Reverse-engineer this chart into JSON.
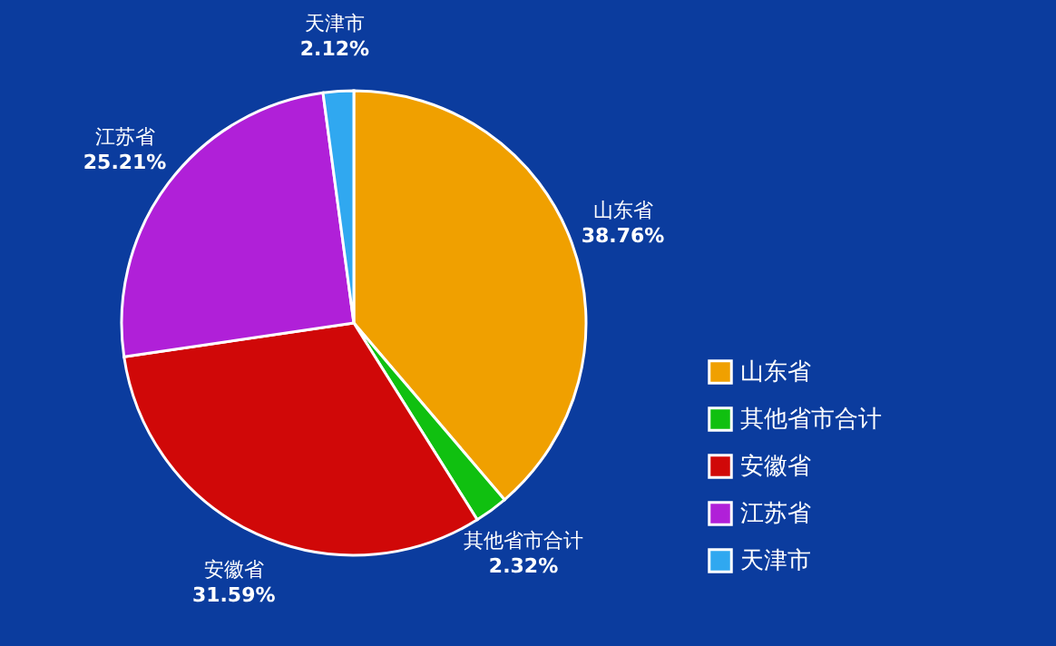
{
  "chart_data": {
    "type": "pie",
    "categories": [
      "山东省",
      "其他省市合计",
      "安徽省",
      "江苏省",
      "天津市"
    ],
    "values": [
      38.76,
      2.32,
      31.59,
      25.21,
      2.12
    ],
    "value_labels": [
      "38.76%",
      "2.32%",
      "31.59%",
      "25.21%",
      "2.12%"
    ],
    "colors": [
      "#f0a000",
      "#10c010",
      "#d00808",
      "#b020d8",
      "#30a8f0"
    ],
    "legend": "right"
  }
}
